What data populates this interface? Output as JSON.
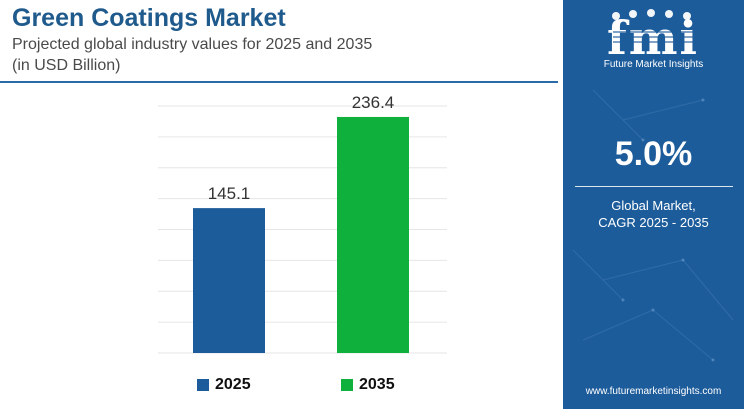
{
  "header": {
    "title": "Green Coatings Market",
    "subtitle_line1": "Projected global industry values for 2025 and 2035",
    "subtitle_line2": "(in USD Billion)"
  },
  "chart_data": {
    "type": "bar",
    "categories": [
      "2025",
      "2035"
    ],
    "values": [
      145.1,
      236.4
    ],
    "data_labels": [
      "145.1",
      "236.4"
    ],
    "colors": [
      "#1d5c9b",
      "#0fb03c"
    ],
    "title": "Green Coatings Market",
    "subtitle": "Projected global industry values for 2025 and 2035",
    "unit": "(in USD Billion)",
    "xlabel": "",
    "ylabel": "",
    "ylim": [
      0,
      250
    ],
    "grid": true,
    "legend": {
      "position": "bottom",
      "entries": [
        "2025",
        "2035"
      ]
    }
  },
  "sidebar": {
    "logo_letters": "fmi",
    "logo_text": "Future Market Insights",
    "cagr_value": "5.0%",
    "cagr_label_line1": "Global Market,",
    "cagr_label_line2": "CAGR 2025 - 2035",
    "website": "www.futuremarketinsights.com",
    "background_color": "#1d5c9b"
  }
}
